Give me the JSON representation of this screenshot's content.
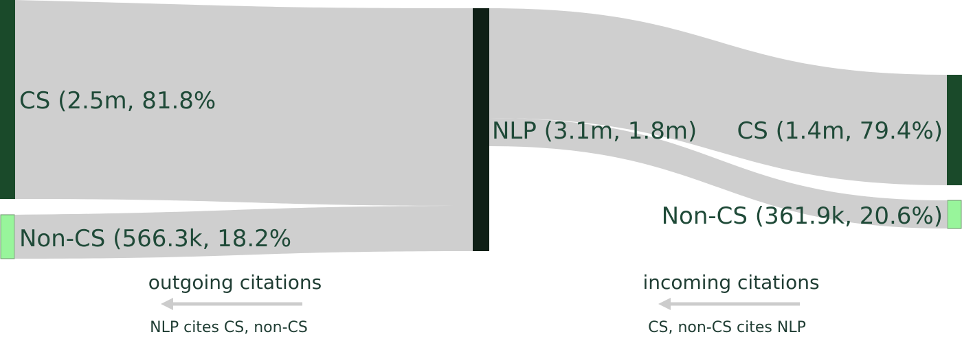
{
  "nodes": {
    "left_cs": {
      "label": "CS (2.5m, 81.8%",
      "color": "#1a4a2a"
    },
    "left_noncs": {
      "label": "Non-CS (566.3k, 18.2%",
      "color": "#98f59b"
    },
    "center_nlp": {
      "label": "NLP (3.1m, 1.8m)",
      "color": "#0f1f16"
    },
    "right_cs": {
      "label": "CS (1.4m, 79.4%)",
      "color": "#1a4a2a"
    },
    "right_noncs": {
      "label": "Non-CS (361.9k, 20.6%)",
      "color": "#98f59b"
    }
  },
  "flow_color": "#cfcfcf",
  "captions": {
    "outgoing_title": "outgoing citations",
    "outgoing_sub": "NLP cites CS, non-CS",
    "incoming_title": "incoming citations",
    "incoming_sub": "CS, non-CS cites NLP"
  },
  "arrow_color": "#cccccc",
  "text_color": "#1f4a38"
}
